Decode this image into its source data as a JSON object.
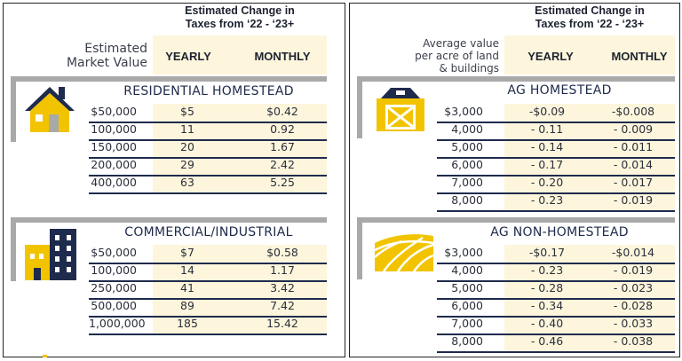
{
  "left": {
    "header_title_line1": "Estimated Change in",
    "header_title_line2": "Taxes from ‘22 - ‘23+",
    "row_label_line1": "Estimated",
    "row_label_line2": "Market Value",
    "col_yearly": "YEARLY",
    "col_monthly": "MONTHLY",
    "residential": {
      "title": "RESIDENTIAL HOMESTEAD",
      "icon": "house-icon",
      "rows": [
        [
          "$50,000",
          "$5",
          "$0.42"
        ],
        [
          "100,000",
          "11",
          "0.92"
        ],
        [
          "150,000",
          "20",
          "1.67"
        ],
        [
          "200,000",
          "29",
          "2.42"
        ],
        [
          "400,000",
          "63",
          "5.25"
        ]
      ]
    },
    "commercial": {
      "title": "COMMERCIAL/INDUSTRIAL",
      "icon": "buildings-icon",
      "rows": [
        [
          "$50,000",
          "$7",
          "$0.58"
        ],
        [
          "100,000",
          "14",
          "1.17"
        ],
        [
          "250,000",
          "41",
          "3.42"
        ],
        [
          "500,000",
          "89",
          "7.42"
        ],
        [
          "1,000,000",
          "185",
          "15.42"
        ]
      ]
    }
  },
  "right": {
    "header_title_line1": "Estimated Change in",
    "header_title_line2": "Taxes from ‘22 - ‘23+",
    "row_label_line1": "Average value",
    "row_label_line2": "per acre of land",
    "row_label_line3": "& buildings",
    "col_yearly": "YEARLY",
    "col_monthly": "MONTHLY",
    "ag_homestead": {
      "title": "AG HOMESTEAD",
      "icon": "barn-icon",
      "rows": [
        [
          "$3,000",
          "-$0.09",
          "-$0.008"
        ],
        [
          "4,000",
          "- 0.11",
          "- 0.009"
        ],
        [
          "5,000",
          "- 0.14",
          "- 0.011"
        ],
        [
          "6,000",
          "- 0.17",
          "- 0.014"
        ],
        [
          "7,000",
          "- 0.20",
          "- 0.017"
        ],
        [
          "8,000",
          "- 0.23",
          "- 0.019"
        ]
      ]
    },
    "ag_non_homestead": {
      "title": "AG NON-HOMESTEAD",
      "icon": "field-icon",
      "rows": [
        [
          "$3,000",
          "-$0.17",
          "-$0.014"
        ],
        [
          "4,000",
          "- 0.23",
          "- 0.019"
        ],
        [
          "5,000",
          "- 0.28",
          "- 0.023"
        ],
        [
          "6,000",
          "- 0.34",
          "- 0.028"
        ],
        [
          "7,000",
          "- 0.40",
          "- 0.033"
        ],
        [
          "8,000",
          "- 0.46",
          "- 0.038"
        ]
      ]
    }
  },
  "colors": {
    "navy": "#1f2b4d",
    "gold": "#f2c400",
    "cream": "#fdf6dd",
    "band": "#a9a9a9"
  }
}
